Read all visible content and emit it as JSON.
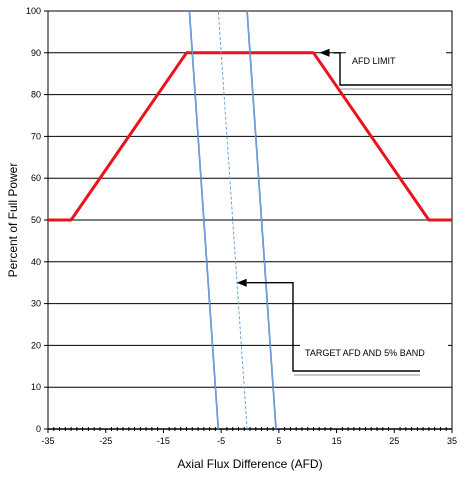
{
  "chart_data": {
    "type": "line",
    "xlabel": "Axial Flux Difference (AFD)",
    "ylabel": "Percent of Full Power",
    "xlim": [
      -35,
      35
    ],
    "ylim": [
      0,
      100
    ],
    "xticks": [
      "-35",
      "-25",
      "-15",
      "-5",
      "5",
      "15",
      "25",
      "35"
    ],
    "yticks": [
      "0",
      "10",
      "20",
      "30",
      "40",
      "50",
      "60",
      "70",
      "80",
      "90",
      "100"
    ],
    "grid": "horizontal",
    "colors": {
      "afd_limit": "#e8141b",
      "band": "#2f6fbf",
      "target": "#6fa3da",
      "zero_axis": "#000000"
    },
    "series": [
      {
        "name": "AFD LIMIT",
        "x": [
          -35,
          -31,
          -11,
          11,
          31,
          35
        ],
        "y": [
          50,
          50,
          90,
          90,
          50,
          50
        ]
      },
      {
        "name": "",
        "x": [
          -5.5,
          -10.5
        ],
        "y": [
          0,
          100
        ]
      },
      {
        "name": "",
        "x": [
          4.5,
          -0.5
        ],
        "y": [
          0,
          100
        ]
      },
      {
        "name": "",
        "x": [
          -0.5,
          -5.5
        ],
        "y": [
          0,
          100
        ]
      }
    ],
    "annotations": [
      {
        "text": "AFD LIMIT",
        "x": 11,
        "y": 90
      },
      {
        "text": "TARGET AFD AND 5% BAND",
        "x": -3,
        "y": 35
      }
    ]
  }
}
